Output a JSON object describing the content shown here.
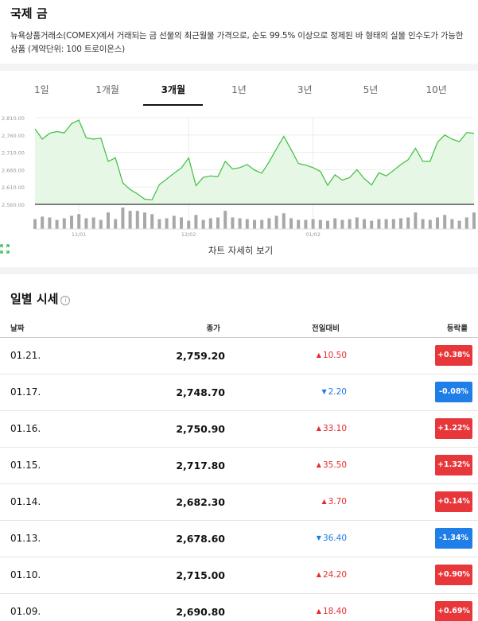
{
  "header": {
    "title": "국제 금",
    "description": "뉴욕상품거래소(COMEX)에서 거래되는 금 선물의 최근월물 가격으로, 순도 99.5% 이상으로 정제된 바 형태의 실물 인수도가 가능한 상품 (계약단위: 100 트로이온스)"
  },
  "tabs": [
    {
      "label": "1일",
      "active": false
    },
    {
      "label": "1개월",
      "active": false
    },
    {
      "label": "3개월",
      "active": true
    },
    {
      "label": "1년",
      "active": false
    },
    {
      "label": "3년",
      "active": false
    },
    {
      "label": "5년",
      "active": false
    },
    {
      "label": "10년",
      "active": false
    }
  ],
  "chart_data": {
    "type": "area",
    "line_color": "#3cbf3c",
    "fill_color": "#e6f7e6",
    "y_ticks": [
      "2,810.00",
      "2,760.00",
      "2,710.00",
      "2,660.00",
      "2,610.00",
      "2,560.00"
    ],
    "ylim": [
      2560,
      2810
    ],
    "x_ticks": [
      {
        "label": "11/01",
        "index": 6
      },
      {
        "label": "12/02",
        "index": 21
      },
      {
        "label": "01/02",
        "index": 38
      }
    ],
    "values": [
      2778,
      2748,
      2765,
      2770,
      2766,
      2793,
      2803,
      2752,
      2748,
      2751,
      2684,
      2694,
      2622,
      2603,
      2590,
      2575,
      2573,
      2617,
      2633,
      2650,
      2665,
      2694,
      2614,
      2638,
      2642,
      2640,
      2684,
      2662,
      2666,
      2675,
      2659,
      2650,
      2683,
      2720,
      2756,
      2718,
      2678,
      2673,
      2666,
      2655,
      2615,
      2645,
      2630,
      2637,
      2660,
      2634,
      2616,
      2651,
      2642,
      2658,
      2675,
      2689,
      2722,
      2684,
      2684,
      2739,
      2760,
      2748,
      2741,
      2767,
      2765
    ],
    "volumes": [
      12,
      15,
      14,
      11,
      13,
      16,
      18,
      13,
      14,
      11,
      20,
      12,
      26,
      22,
      22,
      20,
      18,
      12,
      13,
      16,
      14,
      10,
      17,
      11,
      13,
      14,
      22,
      14,
      13,
      12,
      11,
      11,
      13,
      16,
      19,
      13,
      11,
      11,
      12,
      11,
      10,
      13,
      11,
      12,
      14,
      12,
      10,
      12,
      12,
      12,
      13,
      14,
      20,
      12,
      11,
      14,
      17,
      12,
      10,
      14,
      20
    ]
  },
  "chart_detail_label": "차트 자세히 보기",
  "daily": {
    "title": "일별 시세",
    "info_icon": "info-icon",
    "columns": [
      "날짜",
      "종가",
      "전일대비",
      "등락률"
    ],
    "rows": [
      {
        "date": "01.21.",
        "close": "2,759.20",
        "change": "10.50",
        "direction": "up",
        "rate": "+0.38%"
      },
      {
        "date": "01.17.",
        "close": "2,748.70",
        "change": "2.20",
        "direction": "down",
        "rate": "-0.08%"
      },
      {
        "date": "01.16.",
        "close": "2,750.90",
        "change": "33.10",
        "direction": "up",
        "rate": "+1.22%"
      },
      {
        "date": "01.15.",
        "close": "2,717.80",
        "change": "35.50",
        "direction": "up",
        "rate": "+1.32%"
      },
      {
        "date": "01.14.",
        "close": "2,682.30",
        "change": "3.70",
        "direction": "up",
        "rate": "+0.14%"
      },
      {
        "date": "01.13.",
        "close": "2,678.60",
        "change": "36.40",
        "direction": "down",
        "rate": "-1.34%"
      },
      {
        "date": "01.10.",
        "close": "2,715.00",
        "change": "24.20",
        "direction": "up",
        "rate": "+0.90%"
      },
      {
        "date": "01.09.",
        "close": "2,690.80",
        "change": "18.40",
        "direction": "up",
        "rate": "+0.69%"
      }
    ]
  }
}
